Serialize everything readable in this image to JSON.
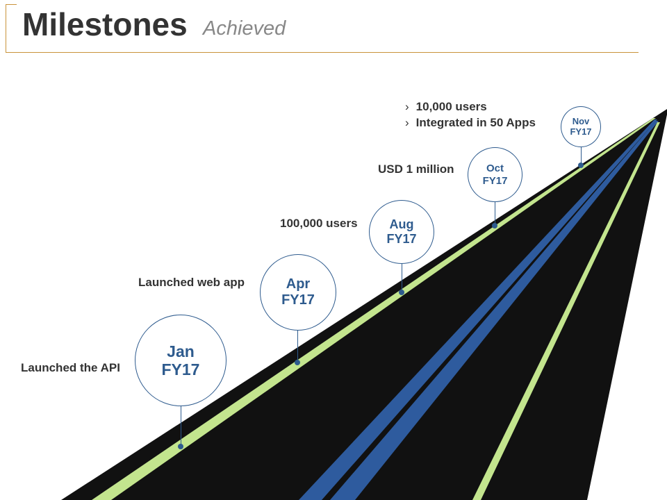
{
  "header": {
    "title": "Milestones",
    "subtitle": "Achieved"
  },
  "colors": {
    "road": "#111111",
    "edge_line": "#c3e58e",
    "center_line": "#2e5b9e",
    "accent": "#c9933a",
    "circle_text": "#2e5b8e",
    "label_text": "#333333"
  },
  "milestones": [
    {
      "month": "Jan",
      "year": "FY17",
      "label": "Launched the API"
    },
    {
      "month": "Apr",
      "year": "FY17",
      "label": "Launched web app"
    },
    {
      "month": "Aug",
      "year": "FY17",
      "label": "100,000 users"
    },
    {
      "month": "Oct",
      "year": "FY17",
      "label": "USD 1 million"
    },
    {
      "month": "Nov",
      "year": "FY17",
      "bullets": [
        "10,000 users",
        "Integrated in 50 Apps"
      ]
    }
  ],
  "bullet_marker": "›"
}
